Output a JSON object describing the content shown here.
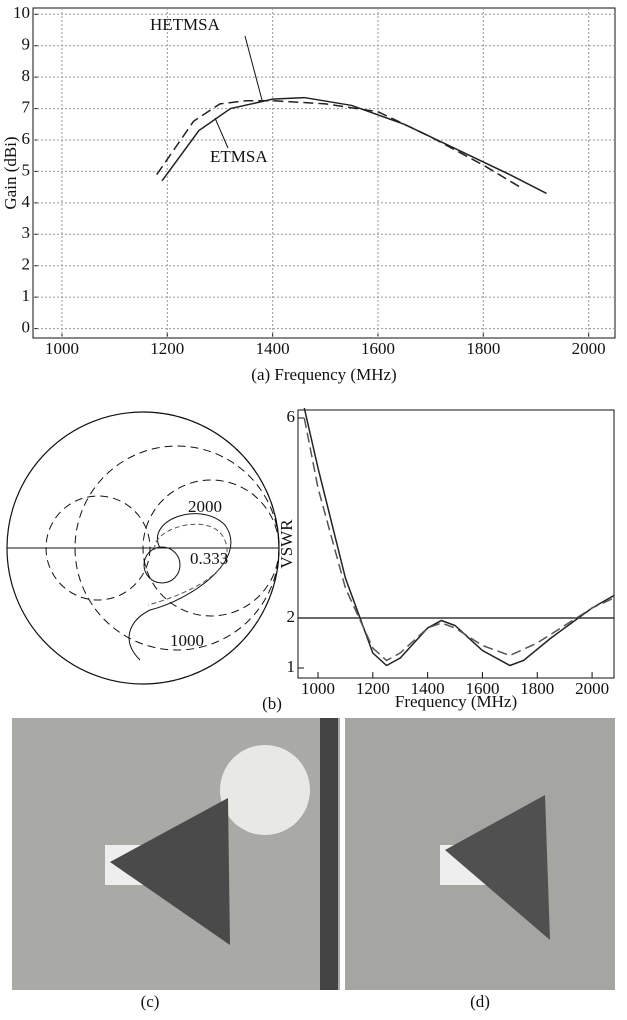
{
  "chart_data": [
    {
      "type": "line",
      "xlabel": "(a) Frequency (MHz)",
      "ylabel": "Gain (dBi)",
      "xlim": [
        945,
        2050
      ],
      "ylim": [
        -0.3,
        10.2
      ],
      "xticks": [
        1000,
        1200,
        1400,
        1600,
        1800,
        2000
      ],
      "yticks": [
        0,
        1,
        2,
        3,
        4,
        5,
        6,
        7,
        8,
        9,
        10
      ],
      "grid": true,
      "series": [
        {
          "name": "HETMSA",
          "color": "#222",
          "style": "dashed",
          "x": [
            1180,
            1250,
            1300,
            1350,
            1400,
            1500,
            1600,
            1700,
            1800,
            1870
          ],
          "values": [
            4.9,
            6.6,
            7.15,
            7.25,
            7.25,
            7.15,
            6.9,
            6.1,
            5.2,
            4.5
          ]
        },
        {
          "name": "ETMSA",
          "color": "#222",
          "style": "solid",
          "x": [
            1190,
            1260,
            1320,
            1400,
            1460,
            1550,
            1650,
            1750,
            1850,
            1920
          ],
          "values": [
            4.7,
            6.3,
            7.0,
            7.3,
            7.35,
            7.1,
            6.5,
            5.7,
            4.9,
            4.3
          ]
        }
      ]
    },
    {
      "type": "smith",
      "annotations": [
        "2000",
        "0.333",
        "1000"
      ],
      "caption": "(b)"
    },
    {
      "type": "line",
      "xlabel": "Frequency (MHz)",
      "ylabel": "VSWR",
      "xlim": [
        927,
        2080
      ],
      "ylim": [
        0.8,
        6.16
      ],
      "xticks": [
        1000,
        1200,
        1400,
        1600,
        1800,
        2000
      ],
      "yticks": [
        1,
        2,
        6
      ],
      "grid": false,
      "reference_line": 2,
      "series": [
        {
          "name": null,
          "color": "#222",
          "style": "solid",
          "x": [
            950,
            1000,
            1100,
            1200,
            1250,
            1300,
            1400,
            1450,
            1500,
            1600,
            1700,
            1750,
            1850,
            2000,
            2080
          ],
          "values": [
            6.2,
            5.0,
            2.8,
            1.3,
            1.05,
            1.2,
            1.8,
            1.95,
            1.85,
            1.35,
            1.05,
            1.15,
            1.6,
            2.2,
            2.45
          ]
        },
        {
          "name": null,
          "color": "#555",
          "style": "dashed",
          "x": [
            950,
            1000,
            1100,
            1200,
            1250,
            1300,
            1400,
            1450,
            1500,
            1600,
            1700,
            1800,
            1900,
            2000,
            2080
          ],
          "values": [
            6.0,
            4.6,
            2.6,
            1.4,
            1.15,
            1.3,
            1.8,
            1.9,
            1.8,
            1.45,
            1.25,
            1.5,
            1.85,
            2.2,
            2.4
          ]
        }
      ]
    }
  ],
  "figures": [
    {
      "caption": "(c)"
    },
    {
      "caption": "(d)"
    }
  ]
}
